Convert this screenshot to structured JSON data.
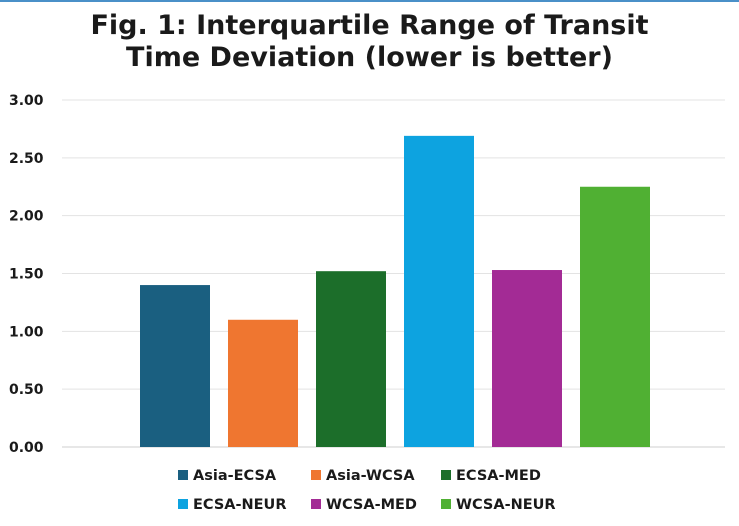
{
  "chart_data": {
    "type": "bar",
    "title_lines": [
      "Fig. 1: Interquartile Range of Transit",
      "Time Deviation (lower is better)"
    ],
    "categories": [
      "Asia-ECSA",
      "Asia-WCSA",
      "ECSA-MED",
      "ECSA-NEUR",
      "WCSA-MED",
      "WCSA-NEUR"
    ],
    "values": [
      1.4,
      1.1,
      1.52,
      2.69,
      1.53,
      2.25
    ],
    "colors": [
      "#1a5f80",
      "#ef7630",
      "#1c6e2a",
      "#0da3e0",
      "#a32b95",
      "#50b033"
    ],
    "ylim": [
      0,
      3
    ],
    "yticks": [
      "0.00",
      "0.50",
      "1.00",
      "1.50",
      "2.00",
      "2.50",
      "3.00"
    ],
    "grid": true,
    "legend_position": "bottom"
  }
}
